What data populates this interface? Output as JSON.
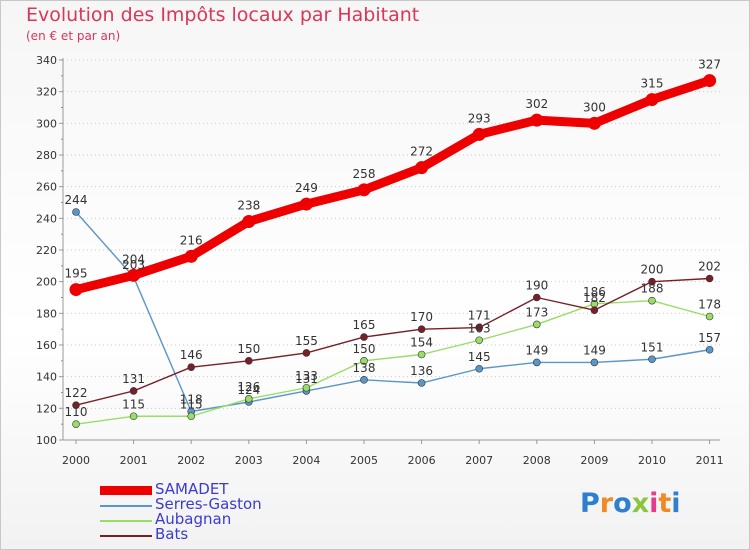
{
  "header": {
    "title": "Evolution des Impôts locaux par Habitant",
    "subtitle": "(en € et par an)"
  },
  "chart_data": {
    "type": "line",
    "title": "Evolution des Impôts locaux par Habitant",
    "subtitle": "(en € et par an)",
    "xlabel": "",
    "ylabel": "",
    "x": [
      "2000",
      "2001",
      "2002",
      "2003",
      "2004",
      "2005",
      "2006",
      "2007",
      "2008",
      "2009",
      "2010",
      "2011"
    ],
    "ylim": [
      100,
      340
    ],
    "yticks": [
      100,
      120,
      140,
      160,
      180,
      200,
      220,
      240,
      260,
      280,
      300,
      320,
      340
    ],
    "grid": "horizontal dotted",
    "legend_position": "bottom-left",
    "series": [
      {
        "name": "SAMADET",
        "color": "#ee0000",
        "values": [
          195,
          204,
          216,
          238,
          249,
          258,
          272,
          293,
          302,
          300,
          315,
          327
        ]
      },
      {
        "name": "Serres-Gaston",
        "color": "#5a96c8",
        "values": [
          244,
          203,
          118,
          124,
          131,
          138,
          136,
          145,
          149,
          149,
          151,
          157
        ]
      },
      {
        "name": "Aubagnan",
        "color": "#99dd66",
        "values": [
          110,
          115,
          115,
          126,
          133,
          150,
          154,
          163,
          173,
          186,
          188,
          178
        ]
      },
      {
        "name": "Bats",
        "color": "#7a1f28",
        "values": [
          122,
          131,
          146,
          150,
          155,
          165,
          170,
          171,
          190,
          182,
          200,
          202
        ]
      }
    ]
  },
  "logo": {
    "letters": [
      "P",
      "r",
      "o",
      "x",
      "i",
      "t",
      "i"
    ],
    "colors": [
      "#2f7fd0",
      "#f08a24",
      "#2f7fd0",
      "#8cc63f",
      "#e83a8c",
      "#f08a24",
      "#2f7fd0"
    ]
  }
}
